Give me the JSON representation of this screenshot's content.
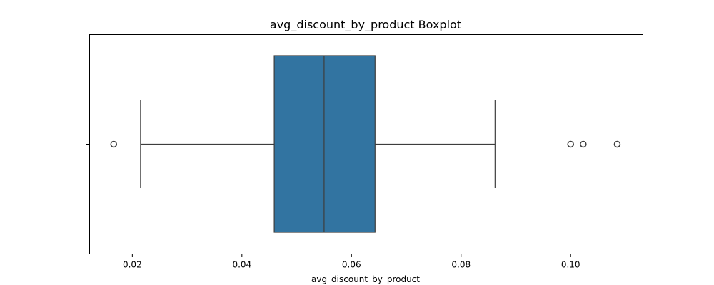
{
  "chart_data": {
    "type": "boxplot",
    "title": "avg_discount_by_product Boxplot",
    "xlabel": "avg_discount_by_product",
    "ylabel": "",
    "orientation": "horizontal",
    "xlim": [
      0.0122,
      0.1132
    ],
    "xticks": [
      0.02,
      0.04,
      0.06,
      0.08,
      0.1
    ],
    "xtick_labels": [
      "0.02",
      "0.04",
      "0.06",
      "0.08",
      "0.10"
    ],
    "grid": false,
    "legend": "none",
    "box": {
      "whisker_low": 0.0215,
      "q1": 0.0459,
      "median": 0.055,
      "q3": 0.0643,
      "whisker_high": 0.0862
    },
    "outliers": [
      0.0166,
      0.1,
      0.1023,
      0.1085
    ],
    "colors": {
      "box_fill": "#3274a1",
      "line": "#3d3d3d",
      "axes": "#000000"
    }
  }
}
